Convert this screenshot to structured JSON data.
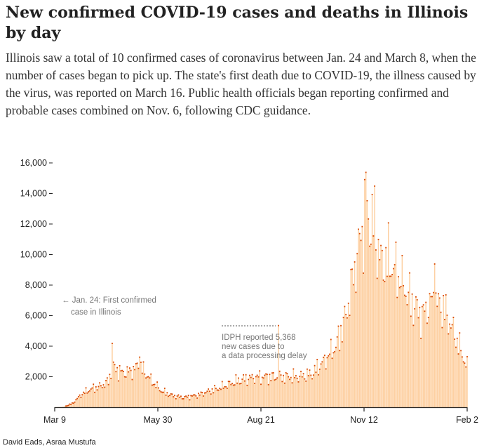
{
  "header": {
    "title": "New confirmed COVID-19 cases and deaths in Illinois by day",
    "description": "Illinois saw a total of 10 confirmed cases of coronavirus between Jan. 24 and March 8, when the number of cases began to pick up. The state's first death due to COVID-19, the illness caused by the virus, was reported on March 16. Public health officials began reporting confirmed and probable cases combined on Nov. 6, following CDC guidance."
  },
  "byline": "David Eads, Asraa Mustufa",
  "colors": {
    "bar": "#fdd0a2",
    "death_dot": "#d94801",
    "axis": "#222222",
    "annotation": "#777777"
  },
  "annotations": {
    "first_case_line1": "← Jan. 24: First confirmed",
    "first_case_line2": "case in Illinois",
    "idph_line1": "IDPH reported 5,368",
    "idph_line2": "new cases due to",
    "idph_line3": "a data processing delay"
  },
  "chart_data": {
    "type": "bar",
    "x_start": "2020-03-09",
    "x_end": "2021-02-02",
    "x_ticks": [
      "Mar 9",
      "May 30",
      "Aug 21",
      "Nov 12",
      "Feb 2"
    ],
    "y_ticks": [
      "2,000",
      "4,000",
      "6,000",
      "8,000",
      "10,000",
      "12,000",
      "14,000",
      "16,000"
    ],
    "ylim": [
      0,
      16000
    ],
    "grid": false,
    "series": [
      {
        "metric": "new cases",
        "anchors": [
          [
            "2020-03-09",
            5
          ],
          [
            "2020-03-16",
            40
          ],
          [
            "2020-03-23",
            250
          ],
          [
            "2020-03-31",
            900
          ],
          [
            "2020-04-07",
            1200
          ],
          [
            "2020-04-15",
            1400
          ],
          [
            "2020-04-21",
            1700
          ],
          [
            "2020-04-24",
            2700
          ],
          [
            "2020-05-01",
            2300
          ],
          [
            "2020-05-06",
            2300
          ],
          [
            "2020-05-12",
            2500
          ],
          [
            "2020-05-15",
            2800
          ],
          [
            "2020-05-20",
            2300
          ],
          [
            "2020-05-26",
            1700
          ],
          [
            "2020-06-02",
            1100
          ],
          [
            "2020-06-10",
            800
          ],
          [
            "2020-06-20",
            650
          ],
          [
            "2020-07-01",
            800
          ],
          [
            "2020-07-10",
            1050
          ],
          [
            "2020-07-20",
            1300
          ],
          [
            "2020-08-01",
            1700
          ],
          [
            "2020-08-10",
            1900
          ],
          [
            "2020-08-20",
            2000
          ],
          [
            "2020-09-01",
            2000
          ],
          [
            "2020-09-10",
            2000
          ],
          [
            "2020-09-20",
            2000
          ],
          [
            "2020-10-01",
            2200
          ],
          [
            "2020-10-10",
            3000
          ],
          [
            "2020-10-20",
            4000
          ],
          [
            "2020-10-28",
            6000
          ],
          [
            "2020-11-05",
            9500
          ],
          [
            "2020-11-12",
            12500
          ],
          [
            "2020-11-18",
            12000
          ],
          [
            "2020-11-25",
            9500
          ],
          [
            "2020-12-02",
            9500
          ],
          [
            "2020-12-10",
            8500
          ],
          [
            "2020-12-20",
            6800
          ],
          [
            "2020-12-28",
            6000
          ],
          [
            "2021-01-05",
            7000
          ],
          [
            "2021-01-14",
            6500
          ],
          [
            "2021-01-22",
            5000
          ],
          [
            "2021-02-02",
            2600
          ]
        ],
        "spikes": [
          [
            "2020-04-24",
            4200
          ],
          [
            "2020-05-16",
            3300
          ],
          [
            "2020-09-04",
            5368
          ],
          [
            "2020-11-13",
            15400
          ],
          [
            "2020-11-20",
            14500
          ],
          [
            "2021-01-07",
            9400
          ]
        ]
      },
      {
        "metric": "deaths",
        "style": "dot on top of each bar"
      }
    ]
  }
}
